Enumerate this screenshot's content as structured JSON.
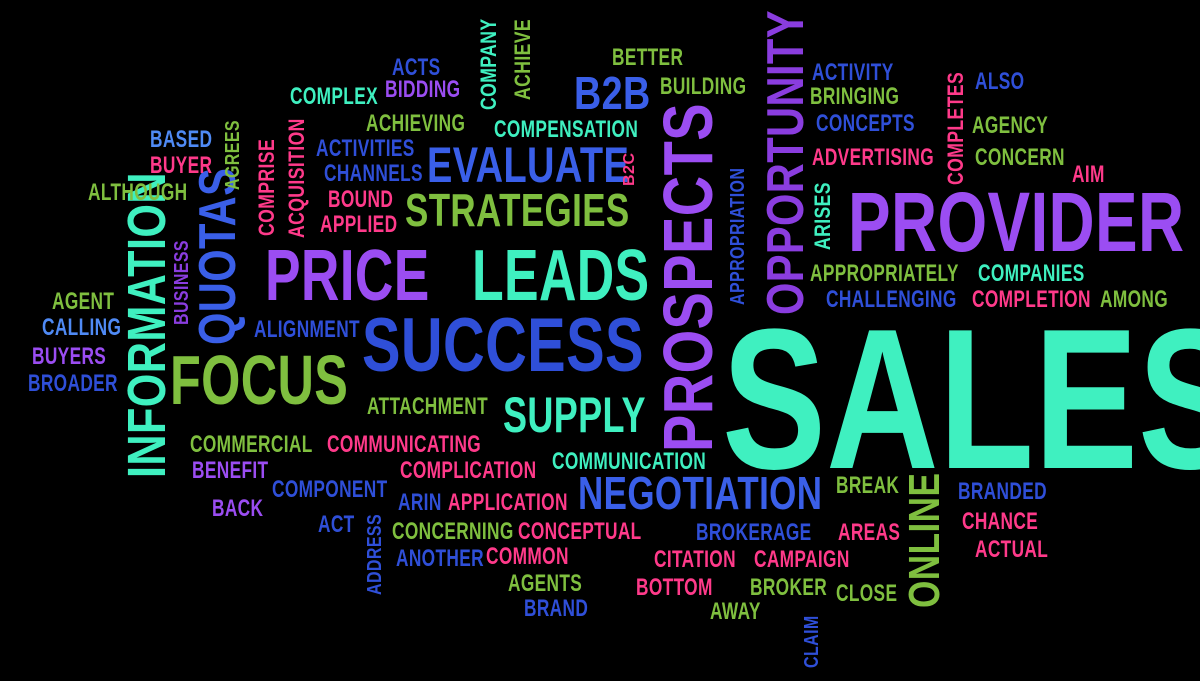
{
  "palette": {
    "background": "#000000",
    "teal": "#3ff0c0",
    "green": "#7fbf3f",
    "lime": "#8fd04a",
    "purple": "#9b4df2",
    "violet": "#8a3ddf",
    "blue": "#3a5fe8",
    "royal": "#2f4fd8",
    "pink": "#ff3a8a",
    "magenta": "#e0307f",
    "light_blue": "#4f8af5"
  },
  "words": {
    "sales": "SALES",
    "provider": "PROVIDER",
    "prospects": "PROSPECTS",
    "opportunity": "OPPORTUNITY",
    "price": "PRICE",
    "leads": "LEADS",
    "success": "SUCCESS",
    "focus": "FOCUS",
    "information": "INFORMATION",
    "quotas": "QUOTAS",
    "evaluate": "EVALUATE",
    "strategies": "STRATEGIES",
    "supply": "SUPPLY",
    "negotiation": "NEGOTIATION",
    "online": "ONLINE",
    "b2b": "B2B",
    "b2c": "B2C",
    "acts": "ACTS",
    "bidding": "BIDDING",
    "company": "COMPANY",
    "achieve": "ACHIEVE",
    "better": "BETTER",
    "building": "BUILDING",
    "activity": "ACTIVITY",
    "bringing": "BRINGING",
    "concepts": "CONCEPTS",
    "also": "ALSO",
    "agency": "AGENCY",
    "completes": "COMPLETES",
    "complex": "COMPLEX",
    "achieving": "ACHIEVING",
    "compensation": "COMPENSATION",
    "based": "BASED",
    "buyer": "BUYER",
    "agrees": "AGREES",
    "comprise": "COMPRISE",
    "acquisition": "ACQUISITION",
    "activities": "ACTIVITIES",
    "channels": "CHANNELS",
    "advertising": "ADVERTISING",
    "concern": "CONCERN",
    "aim": "AIM",
    "although": "ALTHOUGH",
    "bound": "BOUND",
    "applied": "APPLIED",
    "appropriation": "APPROPRIATION",
    "arises": "ARISES",
    "business": "BUSINESS",
    "appropriately": "APPROPRIATELY",
    "companies": "COMPANIES",
    "challenging": "CHALLENGING",
    "completion": "COMPLETION",
    "among": "AMONG",
    "agent": "AGENT",
    "calling": "CALLING",
    "alignment": "ALIGNMENT",
    "buyers": "BUYERS",
    "broader": "BROADER",
    "attachment": "ATTACHMENT",
    "commercial": "COMMERCIAL",
    "communicating": "COMMUNICATING",
    "benefit": "BENEFIT",
    "complication": "COMPLICATION",
    "communication": "COMMUNICATION",
    "component": "COMPONENT",
    "arin": "ARIN",
    "application": "APPLICATION",
    "break": "BREAK",
    "branded": "BRANDED",
    "back": "BACK",
    "act": "ACT",
    "address": "ADDRESS",
    "concerning": "CONCERNING",
    "conceptual": "CONCEPTUAL",
    "brokerage": "BROKERAGE",
    "areas": "AREAS",
    "chance": "CHANCE",
    "actual": "ACTUAL",
    "another": "ANOTHER",
    "common": "COMMON",
    "citation": "CITATION",
    "campaign": "CAMPAIGN",
    "agents": "AGENTS",
    "bottom": "BOTTOM",
    "broker": "BROKER",
    "close": "CLOSE",
    "brand": "BRAND",
    "away": "AWAY",
    "claim": "CLAIM"
  }
}
